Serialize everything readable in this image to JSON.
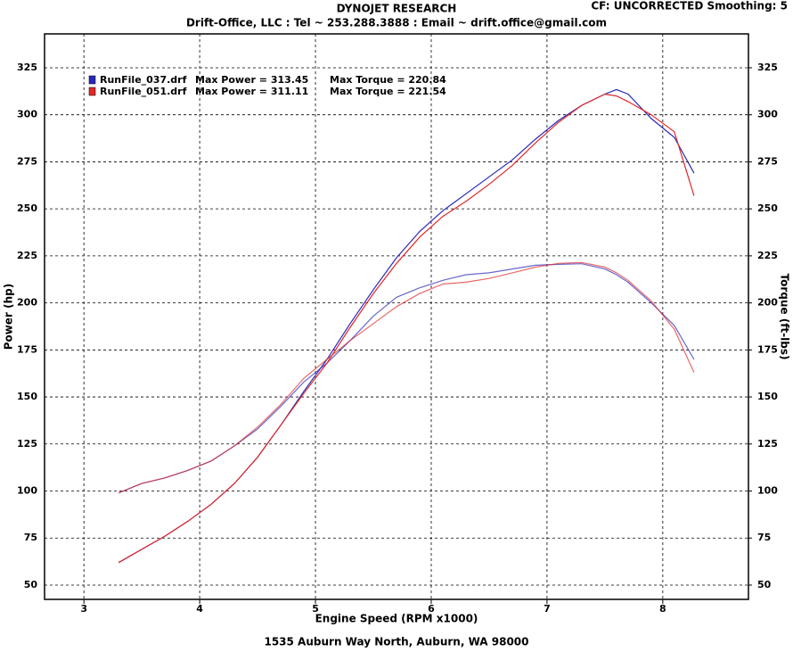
{
  "chart_data": {
    "type": "line",
    "title": "DYNOJET RESEARCH",
    "subtitle": "Drift-Office, LLC : Tel ~ 253.288.3888 : Email ~ drift.office@gmail.com",
    "settings_label": "CF: UNCORRECTED  Smoothing: 5",
    "footer": "1535 Auburn Way North, Auburn, WA 98000",
    "x_label": "Engine Speed (RPM x1000)",
    "y_label": "Power (hp)",
    "y2_label": "Torque (ft-lbs)",
    "x": [
      3.3,
      3.5,
      3.7,
      3.9,
      4.1,
      4.3,
      4.5,
      4.7,
      4.9,
      5.1,
      5.3,
      5.5,
      5.7,
      5.9,
      6.1,
      6.3,
      6.5,
      6.7,
      6.9,
      7.1,
      7.3,
      7.5,
      7.6,
      7.7,
      7.9,
      8.1,
      8.27
    ],
    "xlim": [
      2.66,
      8.74
    ],
    "xticks": [
      3,
      4,
      5,
      6,
      7,
      8
    ],
    "ylim": [
      42.4,
      343
    ],
    "yticks": [
      50,
      75,
      100,
      125,
      150,
      175,
      200,
      225,
      250,
      275,
      300,
      325
    ],
    "y2lim": [
      42.4,
      343
    ],
    "y2ticks": [
      50,
      75,
      100,
      125,
      150,
      175,
      200,
      225,
      250,
      275,
      300,
      325
    ],
    "grid": true,
    "series": [
      {
        "name": "RunFile_037.drf",
        "color": "#2828b8",
        "max_power": "Max Power = 313.45",
        "max_torque": "Max Torque = 220.84",
        "power": [
          62,
          69,
          76,
          84,
          93,
          104,
          118,
          135,
          153,
          170,
          189,
          207,
          224,
          238,
          249,
          258,
          267,
          276,
          287,
          297,
          305,
          311,
          313.4,
          311,
          298,
          288,
          269
        ],
        "torque": [
          99,
          104,
          107,
          111,
          116,
          124,
          133,
          145,
          158,
          168,
          180,
          193,
          203,
          208,
          212,
          215,
          216,
          218,
          220,
          220.5,
          220.8,
          218,
          215,
          211,
          200,
          188,
          170
        ]
      },
      {
        "name": "RunFile_051.drf",
        "color": "#e02828",
        "max_power": "Max Power = 311.11",
        "max_torque": "Max Torque = 221.54",
        "power": [
          62,
          69,
          76,
          84,
          93,
          104,
          118,
          135,
          152,
          168,
          187,
          205,
          221,
          235,
          246,
          254,
          263,
          273,
          285,
          296,
          305,
          311,
          310,
          307,
          300,
          291,
          257
        ],
        "torque": [
          99,
          104,
          107,
          111,
          116,
          124,
          134,
          146,
          160,
          170,
          180,
          189,
          198,
          205,
          210,
          211,
          213,
          216,
          219,
          221,
          221.5,
          219,
          216,
          212,
          201,
          186,
          163
        ]
      }
    ]
  }
}
